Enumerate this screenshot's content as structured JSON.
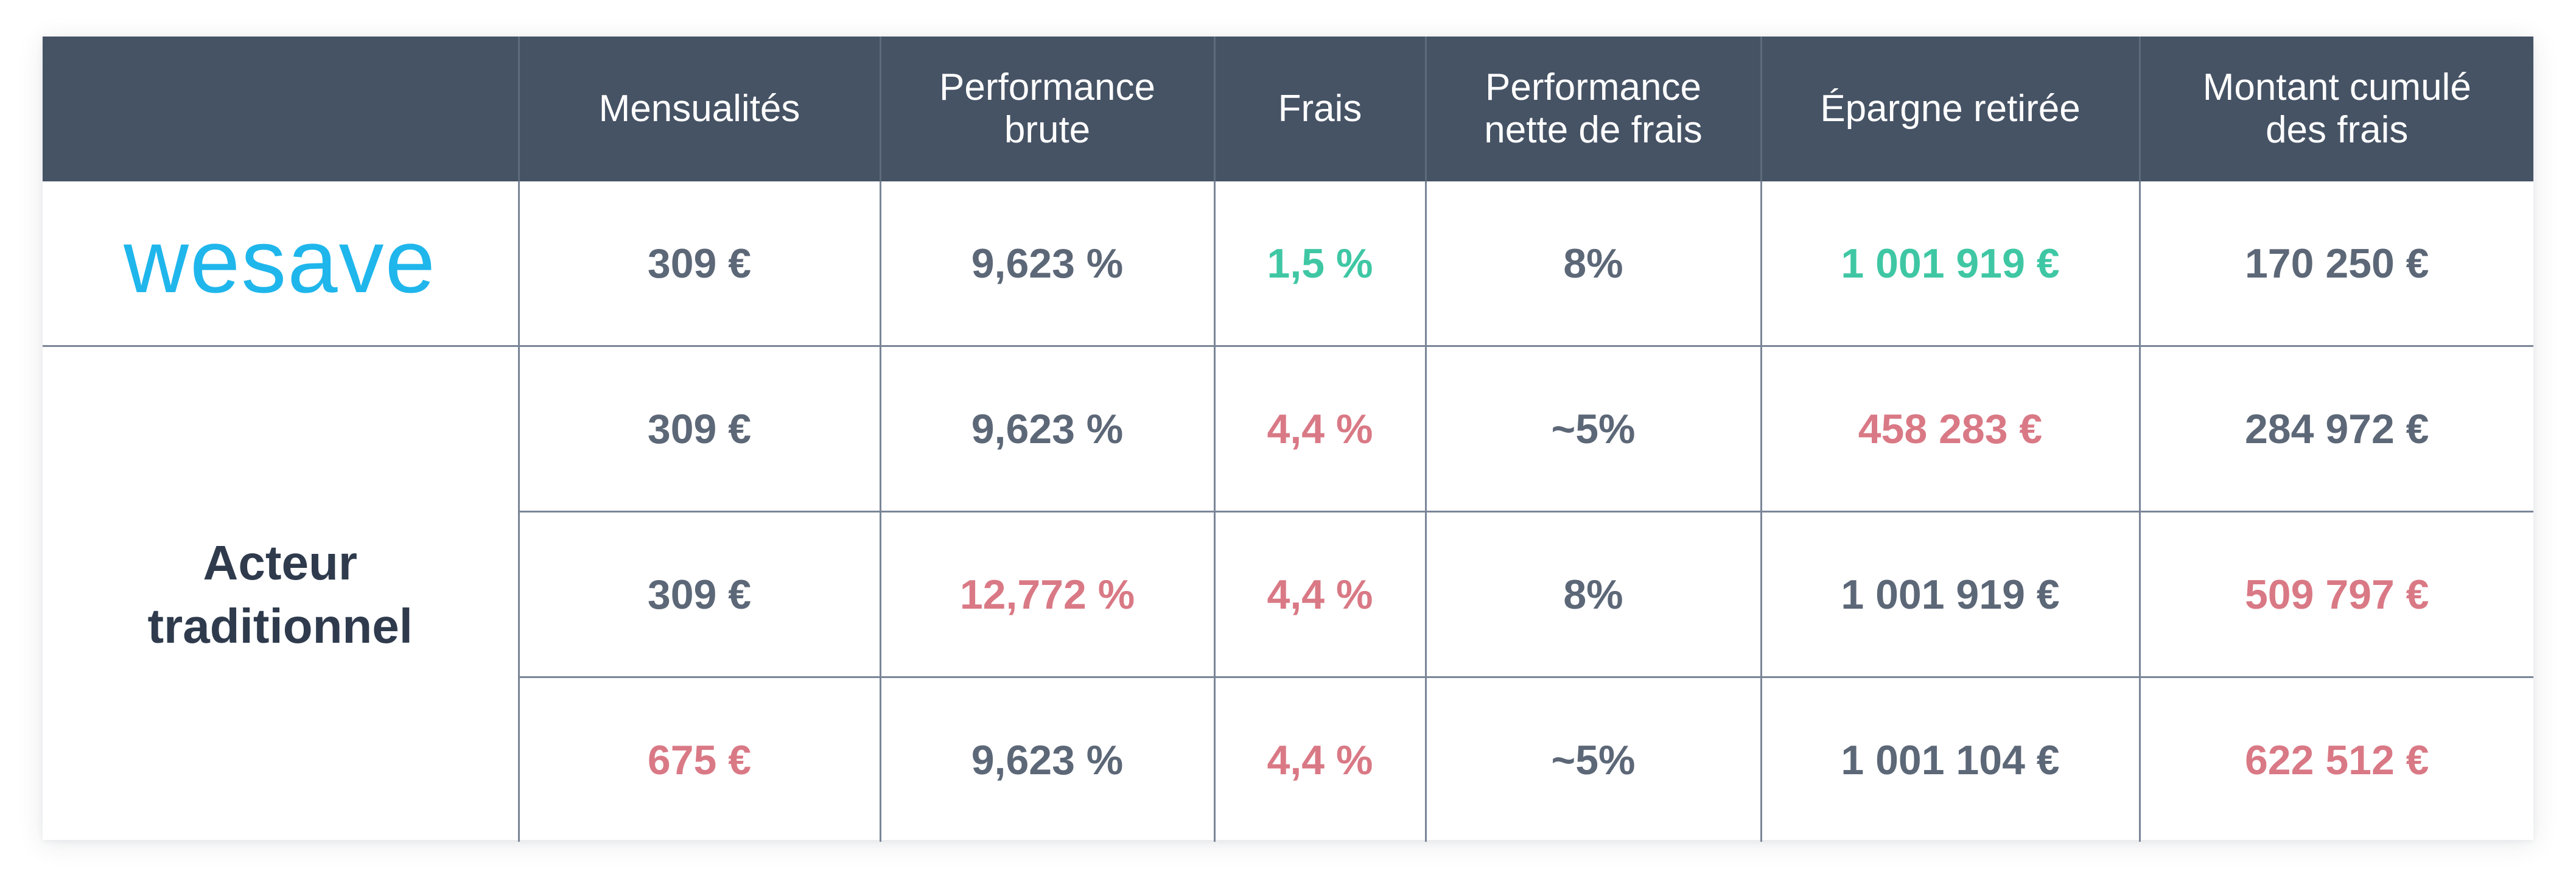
{
  "header": {
    "corner": "",
    "columns": [
      {
        "line1": "Mensualités",
        "line2": ""
      },
      {
        "line1": "Performance",
        "line2": "brute"
      },
      {
        "line1": "Frais",
        "line2": ""
      },
      {
        "line1": "Performance",
        "line2": "nette de frais"
      },
      {
        "line1": "Épargne retirée",
        "line2": ""
      },
      {
        "line1": "Montant cumulé",
        "line2": "des frais"
      }
    ]
  },
  "brand": {
    "logo_text": "wesave",
    "logo_color": "#1fb6ec",
    "row": [
      "309 €",
      "9,623 %",
      "1,5 %",
      "8%",
      "1 001 919 €",
      "170 250 €"
    ]
  },
  "traditional": {
    "label_line1": "Acteur",
    "label_line2": "traditionnel",
    "rows": [
      [
        "309 €",
        "9,623 %",
        "4,4 %",
        "~5%",
        "458 283 €",
        "284 972 €"
      ],
      [
        "309 €",
        "12,772 %",
        "4,4 %",
        "8%",
        "1 001 919 €",
        "509 797 €"
      ],
      [
        "675 €",
        "9,623 %",
        "4,4 %",
        "~5%",
        "1 001 104 €",
        "622 512 €"
      ]
    ]
  },
  "colors": {
    "header_bg": "#465365",
    "favorable": "#3fc7a4",
    "unfavorable": "#d97985",
    "neutral": "#5c6777"
  }
}
